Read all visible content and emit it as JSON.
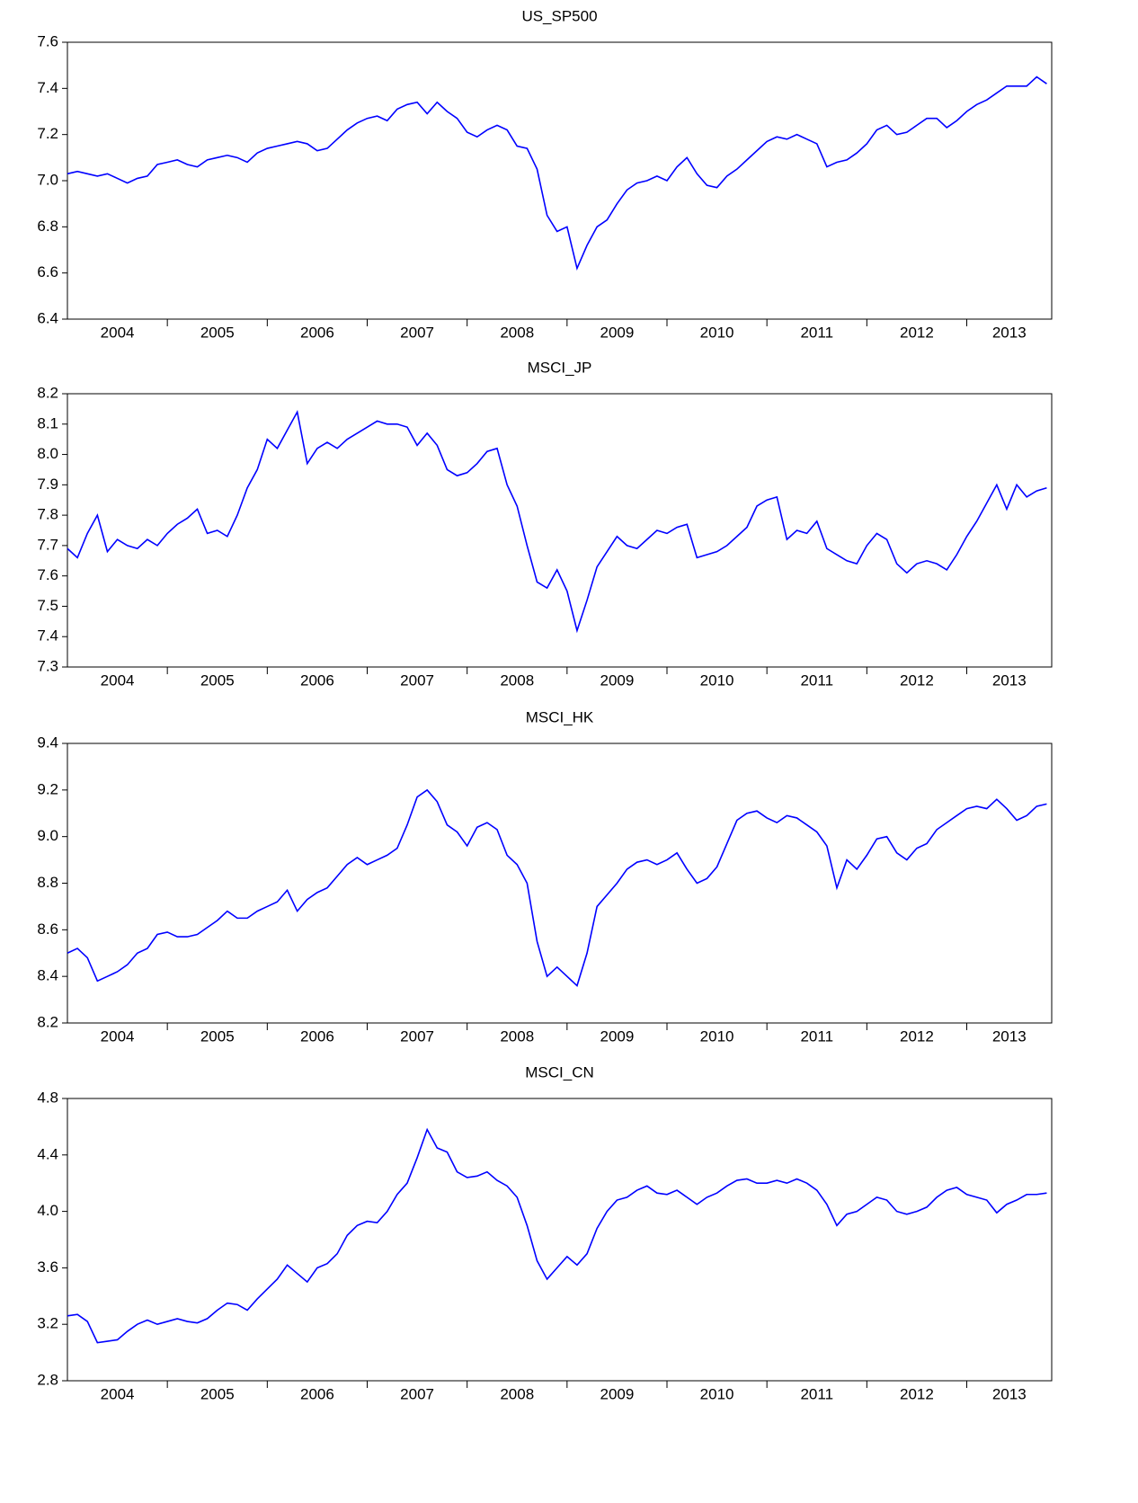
{
  "chart_data": [
    {
      "type": "line",
      "title": "US_SP500",
      "color": "#0000ff",
      "x": [
        2004,
        2004.1,
        2004.2,
        2004.3,
        2004.4,
        2004.5,
        2004.6,
        2004.7,
        2004.8,
        2004.9,
        2005,
        2005.1,
        2005.2,
        2005.3,
        2005.4,
        2005.5,
        2005.6,
        2005.7,
        2005.8,
        2005.9,
        2006,
        2006.1,
        2006.2,
        2006.3,
        2006.4,
        2006.5,
        2006.6,
        2006.7,
        2006.8,
        2006.9,
        2007,
        2007.1,
        2007.2,
        2007.3,
        2007.4,
        2007.5,
        2007.6,
        2007.7,
        2007.8,
        2007.9,
        2008,
        2008.1,
        2008.2,
        2008.3,
        2008.4,
        2008.5,
        2008.6,
        2008.7,
        2008.8,
        2008.9,
        2009,
        2009.1,
        2009.2,
        2009.3,
        2009.4,
        2009.5,
        2009.6,
        2009.7,
        2009.8,
        2009.9,
        2010,
        2010.1,
        2010.2,
        2010.3,
        2010.4,
        2010.5,
        2010.6,
        2010.7,
        2010.8,
        2010.9,
        2011,
        2011.1,
        2011.2,
        2011.3,
        2011.4,
        2011.5,
        2011.6,
        2011.7,
        2011.8,
        2011.9,
        2012,
        2012.1,
        2012.2,
        2012.3,
        2012.4,
        2012.5,
        2012.6,
        2012.7,
        2012.8,
        2012.9,
        2013,
        2013.1,
        2013.2,
        2013.3,
        2013.4,
        2013.5,
        2013.6,
        2013.7,
        2013.8
      ],
      "values": [
        7.03,
        7.04,
        7.03,
        7.02,
        7.03,
        7.01,
        6.99,
        7.01,
        7.02,
        7.07,
        7.08,
        7.09,
        7.07,
        7.06,
        7.09,
        7.1,
        7.11,
        7.1,
        7.08,
        7.12,
        7.14,
        7.15,
        7.16,
        7.17,
        7.16,
        7.13,
        7.14,
        7.18,
        7.22,
        7.25,
        7.27,
        7.28,
        7.26,
        7.31,
        7.33,
        7.34,
        7.29,
        7.34,
        7.3,
        7.27,
        7.21,
        7.19,
        7.22,
        7.24,
        7.22,
        7.15,
        7.14,
        7.05,
        6.85,
        6.78,
        6.8,
        6.62,
        6.72,
        6.8,
        6.83,
        6.9,
        6.96,
        6.99,
        7.0,
        7.02,
        7.0,
        7.06,
        7.1,
        7.03,
        6.98,
        6.97,
        7.02,
        7.05,
        7.09,
        7.13,
        7.17,
        7.19,
        7.18,
        7.2,
        7.18,
        7.16,
        7.06,
        7.08,
        7.09,
        7.12,
        7.16,
        7.22,
        7.24,
        7.2,
        7.21,
        7.24,
        7.27,
        7.27,
        7.23,
        7.26,
        7.3,
        7.33,
        7.35,
        7.38,
        7.41,
        7.41,
        7.41,
        7.45,
        7.42
      ],
      "xlim": [
        2004,
        2013.85
      ],
      "xticks": [
        2004,
        2005,
        2006,
        2007,
        2008,
        2009,
        2010,
        2011,
        2012,
        2013
      ],
      "ylim": [
        6.4,
        7.6
      ],
      "yticks": [
        6.4,
        6.6,
        6.8,
        {
          "value": 7,
          "label": "7.0"
        },
        7.2,
        7.4,
        7.6
      ]
    },
    {
      "type": "line",
      "title": "MSCI_JP",
      "color": "#0000ff",
      "x": [
        2004,
        2004.1,
        2004.2,
        2004.3,
        2004.4,
        2004.5,
        2004.6,
        2004.7,
        2004.8,
        2004.9,
        2005,
        2005.1,
        2005.2,
        2005.3,
        2005.4,
        2005.5,
        2005.6,
        2005.7,
        2005.8,
        2005.9,
        2006,
        2006.1,
        2006.2,
        2006.3,
        2006.4,
        2006.5,
        2006.6,
        2006.7,
        2006.8,
        2006.9,
        2007,
        2007.1,
        2007.2,
        2007.3,
        2007.4,
        2007.5,
        2007.6,
        2007.7,
        2007.8,
        2007.9,
        2008,
        2008.1,
        2008.2,
        2008.3,
        2008.4,
        2008.5,
        2008.6,
        2008.7,
        2008.8,
        2008.9,
        2009,
        2009.1,
        2009.2,
        2009.3,
        2009.4,
        2009.5,
        2009.6,
        2009.7,
        2009.8,
        2009.9,
        2010,
        2010.1,
        2010.2,
        2010.3,
        2010.4,
        2010.5,
        2010.6,
        2010.7,
        2010.8,
        2010.9,
        2011,
        2011.1,
        2011.2,
        2011.3,
        2011.4,
        2011.5,
        2011.6,
        2011.7,
        2011.8,
        2011.9,
        2012,
        2012.1,
        2012.2,
        2012.3,
        2012.4,
        2012.5,
        2012.6,
        2012.7,
        2012.8,
        2012.9,
        2013,
        2013.1,
        2013.2,
        2013.3,
        2013.4,
        2013.5,
        2013.6,
        2013.7,
        2013.8
      ],
      "values": [
        7.69,
        7.66,
        7.74,
        7.8,
        7.68,
        7.72,
        7.7,
        7.69,
        7.72,
        7.7,
        7.74,
        7.77,
        7.79,
        7.82,
        7.74,
        7.75,
        7.73,
        7.8,
        7.89,
        7.95,
        8.05,
        8.02,
        8.08,
        8.14,
        7.97,
        8.02,
        8.04,
        8.02,
        8.05,
        8.07,
        8.09,
        8.11,
        8.1,
        8.1,
        8.09,
        8.03,
        8.07,
        8.03,
        7.95,
        7.93,
        7.94,
        7.97,
        8.01,
        8.02,
        7.9,
        7.83,
        7.7,
        7.58,
        7.56,
        7.62,
        7.55,
        7.42,
        7.52,
        7.63,
        7.68,
        7.73,
        7.7,
        7.69,
        7.72,
        7.75,
        7.74,
        7.76,
        7.77,
        7.66,
        7.67,
        7.68,
        7.7,
        7.73,
        7.76,
        7.83,
        7.85,
        7.86,
        7.72,
        7.75,
        7.74,
        7.78,
        7.69,
        7.67,
        7.65,
        7.64,
        7.7,
        7.74,
        7.72,
        7.64,
        7.61,
        7.64,
        7.65,
        7.64,
        7.62,
        7.67,
        7.73,
        7.78,
        7.84,
        7.9,
        7.82,
        7.9,
        7.86,
        7.88,
        7.89
      ],
      "xlim": [
        2004,
        2013.85
      ],
      "xticks": [
        2004,
        2005,
        2006,
        2007,
        2008,
        2009,
        2010,
        2011,
        2012,
        2013
      ],
      "ylim": [
        7.3,
        8.2
      ],
      "yticks": [
        7.3,
        7.4,
        7.5,
        7.6,
        7.7,
        7.8,
        7.9,
        {
          "value": 8,
          "label": "8.0"
        },
        8.1,
        8.2
      ]
    },
    {
      "type": "line",
      "title": "MSCI_HK",
      "color": "#0000ff",
      "x": [
        2004,
        2004.1,
        2004.2,
        2004.3,
        2004.4,
        2004.5,
        2004.6,
        2004.7,
        2004.8,
        2004.9,
        2005,
        2005.1,
        2005.2,
        2005.3,
        2005.4,
        2005.5,
        2005.6,
        2005.7,
        2005.8,
        2005.9,
        2006,
        2006.1,
        2006.2,
        2006.3,
        2006.4,
        2006.5,
        2006.6,
        2006.7,
        2006.8,
        2006.9,
        2007,
        2007.1,
        2007.2,
        2007.3,
        2007.4,
        2007.5,
        2007.6,
        2007.7,
        2007.8,
        2007.9,
        2008,
        2008.1,
        2008.2,
        2008.3,
        2008.4,
        2008.5,
        2008.6,
        2008.7,
        2008.8,
        2008.9,
        2009,
        2009.1,
        2009.2,
        2009.3,
        2009.4,
        2009.5,
        2009.6,
        2009.7,
        2009.8,
        2009.9,
        2010,
        2010.1,
        2010.2,
        2010.3,
        2010.4,
        2010.5,
        2010.6,
        2010.7,
        2010.8,
        2010.9,
        2011,
        2011.1,
        2011.2,
        2011.3,
        2011.4,
        2011.5,
        2011.6,
        2011.7,
        2011.8,
        2011.9,
        2012,
        2012.1,
        2012.2,
        2012.3,
        2012.4,
        2012.5,
        2012.6,
        2012.7,
        2012.8,
        2012.9,
        2013,
        2013.1,
        2013.2,
        2013.3,
        2013.4,
        2013.5,
        2013.6,
        2013.7,
        2013.8
      ],
      "values": [
        8.5,
        8.52,
        8.48,
        8.38,
        8.4,
        8.42,
        8.45,
        8.5,
        8.52,
        8.58,
        8.59,
        8.57,
        8.57,
        8.58,
        8.61,
        8.64,
        8.68,
        8.65,
        8.65,
        8.68,
        8.7,
        8.72,
        8.77,
        8.68,
        8.73,
        8.76,
        8.78,
        8.83,
        8.88,
        8.91,
        8.88,
        8.9,
        8.92,
        8.95,
        9.05,
        9.17,
        9.2,
        9.15,
        9.05,
        9.02,
        8.96,
        9.04,
        9.06,
        9.03,
        8.92,
        8.88,
        8.8,
        8.55,
        8.4,
        8.44,
        8.4,
        8.36,
        8.5,
        8.7,
        8.75,
        8.8,
        8.86,
        8.89,
        8.9,
        8.88,
        8.9,
        8.93,
        8.86,
        8.8,
        8.82,
        8.87,
        8.97,
        9.07,
        9.1,
        9.11,
        9.08,
        9.06,
        9.09,
        9.08,
        9.05,
        9.02,
        8.96,
        8.78,
        8.9,
        8.86,
        8.92,
        8.99,
        9.0,
        8.93,
        8.9,
        8.95,
        8.97,
        9.03,
        9.06,
        9.09,
        9.12,
        9.13,
        9.12,
        9.16,
        9.12,
        9.07,
        9.09,
        9.13,
        9.14
      ],
      "xlim": [
        2004,
        2013.85
      ],
      "xticks": [
        2004,
        2005,
        2006,
        2007,
        2008,
        2009,
        2010,
        2011,
        2012,
        2013
      ],
      "ylim": [
        8.2,
        9.4
      ],
      "yticks": [
        8.2,
        8.4,
        8.6,
        8.8,
        {
          "value": 9,
          "label": "9.0"
        },
        9.2,
        9.4
      ]
    },
    {
      "type": "line",
      "title": "MSCI_CN",
      "color": "#0000ff",
      "x": [
        2004,
        2004.1,
        2004.2,
        2004.3,
        2004.4,
        2004.5,
        2004.6,
        2004.7,
        2004.8,
        2004.9,
        2005,
        2005.1,
        2005.2,
        2005.3,
        2005.4,
        2005.5,
        2005.6,
        2005.7,
        2005.8,
        2005.9,
        2006,
        2006.1,
        2006.2,
        2006.3,
        2006.4,
        2006.5,
        2006.6,
        2006.7,
        2006.8,
        2006.9,
        2007,
        2007.1,
        2007.2,
        2007.3,
        2007.4,
        2007.5,
        2007.6,
        2007.7,
        2007.8,
        2007.9,
        2008,
        2008.1,
        2008.2,
        2008.3,
        2008.4,
        2008.5,
        2008.6,
        2008.7,
        2008.8,
        2008.9,
        2009,
        2009.1,
        2009.2,
        2009.3,
        2009.4,
        2009.5,
        2009.6,
        2009.7,
        2009.8,
        2009.9,
        2010,
        2010.1,
        2010.2,
        2010.3,
        2010.4,
        2010.5,
        2010.6,
        2010.7,
        2010.8,
        2010.9,
        2011,
        2011.1,
        2011.2,
        2011.3,
        2011.4,
        2011.5,
        2011.6,
        2011.7,
        2011.8,
        2011.9,
        2012,
        2012.1,
        2012.2,
        2012.3,
        2012.4,
        2012.5,
        2012.6,
        2012.7,
        2012.8,
        2012.9,
        2013,
        2013.1,
        2013.2,
        2013.3,
        2013.4,
        2013.5,
        2013.6,
        2013.7,
        2013.8
      ],
      "values": [
        3.26,
        3.27,
        3.22,
        3.07,
        3.08,
        3.09,
        3.15,
        3.2,
        3.23,
        3.2,
        3.22,
        3.24,
        3.22,
        3.21,
        3.24,
        3.3,
        3.35,
        3.34,
        3.3,
        3.38,
        3.45,
        3.52,
        3.62,
        3.56,
        3.5,
        3.6,
        3.63,
        3.7,
        3.83,
        3.9,
        3.93,
        3.92,
        4.0,
        4.12,
        4.2,
        4.38,
        4.58,
        4.45,
        4.42,
        4.28,
        4.24,
        4.25,
        4.28,
        4.22,
        4.18,
        4.1,
        3.9,
        3.65,
        3.52,
        3.6,
        3.68,
        3.62,
        3.7,
        3.88,
        4.0,
        4.08,
        4.1,
        4.15,
        4.18,
        4.13,
        4.12,
        4.15,
        4.1,
        4.05,
        4.1,
        4.13,
        4.18,
        4.22,
        4.23,
        4.2,
        4.2,
        4.22,
        4.2,
        4.23,
        4.2,
        4.15,
        4.05,
        3.9,
        3.98,
        4.0,
        4.05,
        4.1,
        4.08,
        4.0,
        3.98,
        4.0,
        4.03,
        4.1,
        4.15,
        4.17,
        4.12,
        4.1,
        4.08,
        3.99,
        4.05,
        4.08,
        4.12,
        4.12,
        4.13
      ],
      "xlim": [
        2004,
        2013.85
      ],
      "xticks": [
        2004,
        2005,
        2006,
        2007,
        2008,
        2009,
        2010,
        2011,
        2012,
        2013
      ],
      "ylim": [
        2.8,
        4.8
      ],
      "yticks": [
        2.8,
        3.2,
        3.6,
        {
          "value": 4,
          "label": "4.0"
        },
        4.4,
        4.8
      ]
    }
  ]
}
